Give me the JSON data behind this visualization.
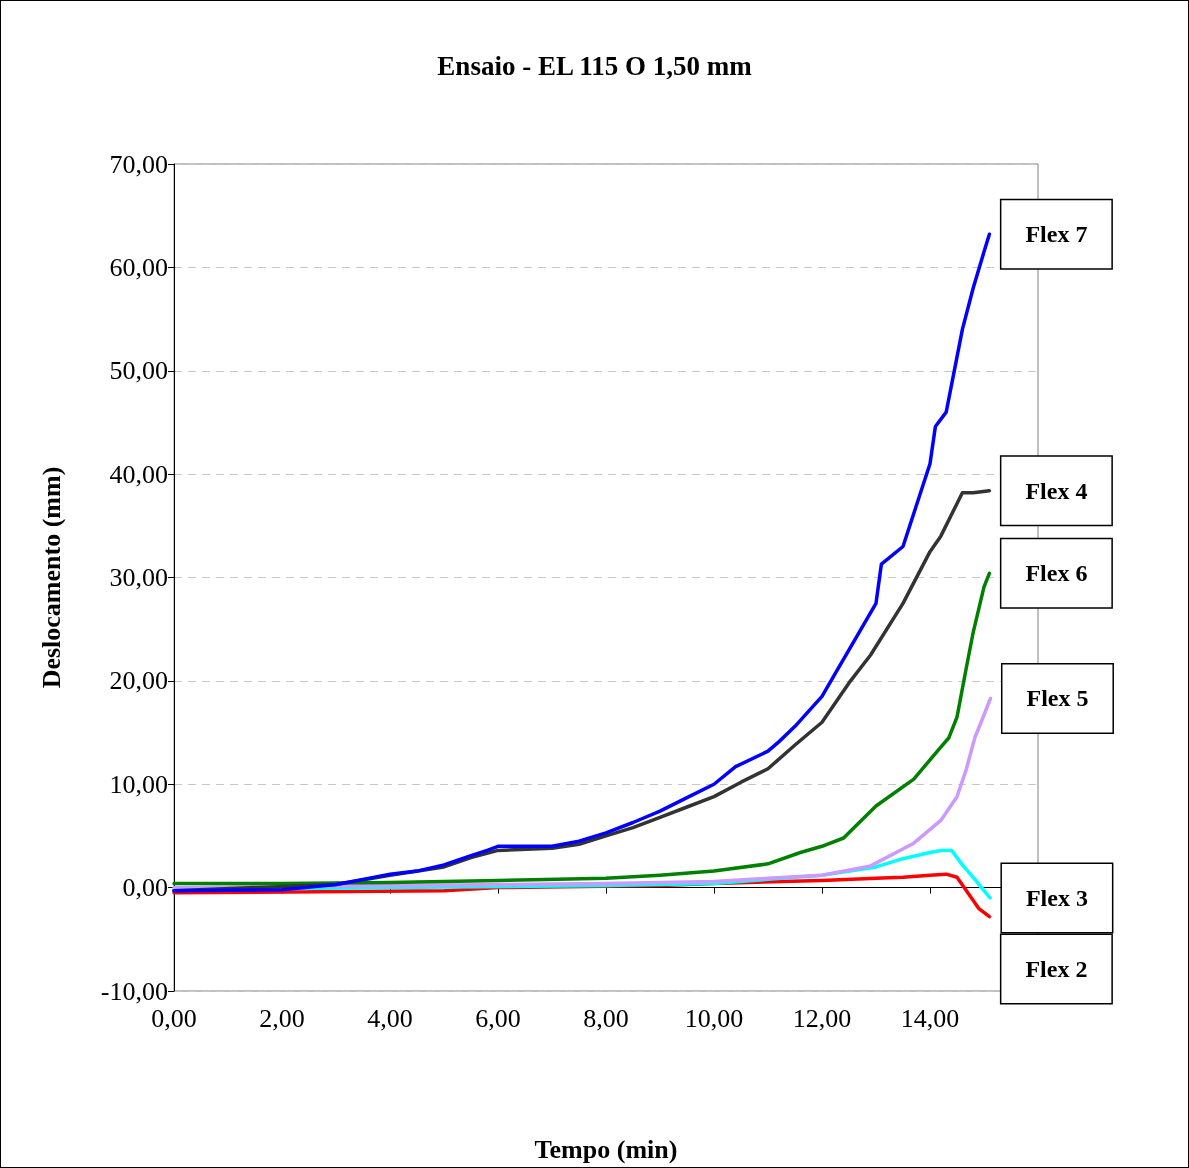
{
  "chart_data": {
    "type": "line",
    "title": "Ensaio - EL 115 O 1,50 mm",
    "xlabel": "Tempo (min)",
    "ylabel": "Deslocamento (mm)",
    "xlim": [
      0,
      16
    ],
    "ylim": [
      -10,
      70
    ],
    "xticks": [
      {
        "value": 0,
        "label": "0,00"
      },
      {
        "value": 2,
        "label": "2,00"
      },
      {
        "value": 4,
        "label": "4,00"
      },
      {
        "value": 6,
        "label": "6,00"
      },
      {
        "value": 8,
        "label": "8,00"
      },
      {
        "value": 10,
        "label": "10,00"
      },
      {
        "value": 12,
        "label": "12,00"
      },
      {
        "value": 14,
        "label": "14,00"
      },
      {
        "value": 16,
        "label": null
      }
    ],
    "yticks": [
      {
        "value": -10,
        "label": "-10,00"
      },
      {
        "value": 0,
        "label": "0,00"
      },
      {
        "value": 10,
        "label": "10,00"
      },
      {
        "value": 20,
        "label": "20,00"
      },
      {
        "value": 30,
        "label": "30,00"
      },
      {
        "value": 40,
        "label": "40,00"
      },
      {
        "value": 50,
        "label": "50,00"
      },
      {
        "value": 60,
        "label": "60,00"
      },
      {
        "value": 70,
        "label": "70,00"
      }
    ],
    "grid": "y",
    "legend": false,
    "marker": "none",
    "line_style": "solid",
    "series": [
      {
        "name": "Flex 7",
        "color": "#0000ff",
        "x": [
          0,
          2,
          3,
          3.5,
          4,
          4.5,
          5,
          5.5,
          5.8,
          6,
          7,
          7.5,
          8,
          8.5,
          9,
          9.5,
          10,
          10.4,
          11,
          11.2,
          11.5,
          12,
          12.3,
          12.5,
          13,
          13.1,
          13.5,
          14,
          14.1,
          14.3,
          14.6,
          14.8,
          15,
          15.1
        ],
        "values": [
          -0.3,
          -0.2,
          0.3,
          0.8,
          1.3,
          1.6,
          2.2,
          3.1,
          3.6,
          4,
          4,
          4.5,
          5.3,
          6.3,
          7.4,
          8.7,
          10,
          11.7,
          13.2,
          14.1,
          15.6,
          18.5,
          21.2,
          23,
          27.5,
          31.3,
          33,
          41,
          44.6,
          46,
          54,
          58,
          61.5,
          63.2
        ]
      },
      {
        "name": "Flex 4",
        "color": "#333333",
        "x": [
          0,
          3,
          4,
          5,
          5.5,
          6,
          7,
          7.5,
          8,
          8.5,
          9,
          9.5,
          10,
          10.5,
          11,
          11.5,
          12,
          12.5,
          12.9,
          13.5,
          14,
          14.2,
          14.6,
          14.8,
          15.1
        ],
        "values": [
          -0.3,
          0.3,
          1.2,
          2,
          2.9,
          3.6,
          3.8,
          4.2,
          5,
          5.8,
          6.8,
          7.8,
          8.8,
          10.2,
          11.5,
          13.8,
          16,
          19.8,
          22.5,
          27.5,
          32.5,
          34,
          38.2,
          38.2,
          38.4
        ]
      },
      {
        "name": "Flex 6",
        "color": "#008000",
        "x": [
          0,
          2,
          4,
          6,
          8,
          9,
          10,
          11,
          11.6,
          12,
          12.4,
          13,
          13.7,
          14.2,
          14.35,
          14.5,
          14.67,
          14.8,
          15,
          15.1
        ],
        "values": [
          0.4,
          0.4,
          0.5,
          0.7,
          0.9,
          1.2,
          1.6,
          2.3,
          3.4,
          4,
          4.8,
          7.9,
          10.5,
          13.6,
          14.5,
          16.5,
          21.2,
          24.7,
          29.1,
          30.4
        ]
      },
      {
        "name": "Flex 5",
        "color": "#cc99ff",
        "x": [
          0,
          4,
          8,
          10,
          11,
          12,
          12.9,
          13.7,
          14.2,
          14.5,
          14.67,
          14.83,
          15,
          15.12
        ],
        "values": [
          0,
          0.2,
          0.4,
          0.6,
          0.9,
          1.2,
          2.1,
          4.3,
          6.5,
          8.8,
          11.4,
          14.5,
          16.7,
          18.3
        ]
      },
      {
        "name": "Flex 3",
        "color": "#00ffff",
        "x": [
          0,
          4,
          8,
          10,
          12,
          13,
          13.5,
          14,
          14.2,
          14.4,
          14.6,
          14.83,
          15.11
        ],
        "values": [
          -0.2,
          0,
          0.2,
          0.4,
          1.2,
          2,
          2.8,
          3.4,
          3.6,
          3.6,
          2.2,
          0.8,
          -1
        ]
      },
      {
        "name": "Flex 2",
        "color": "#ff0000",
        "x": [
          0,
          5,
          6,
          9,
          10,
          12,
          13,
          13.5,
          14,
          14.3,
          14.5,
          14.7,
          14.9,
          15.1
        ],
        "values": [
          -0.5,
          -0.3,
          0,
          0.2,
          0.4,
          0.7,
          0.9,
          1,
          1.2,
          1.3,
          1,
          -0.5,
          -2,
          -2.8
        ]
      }
    ]
  }
}
